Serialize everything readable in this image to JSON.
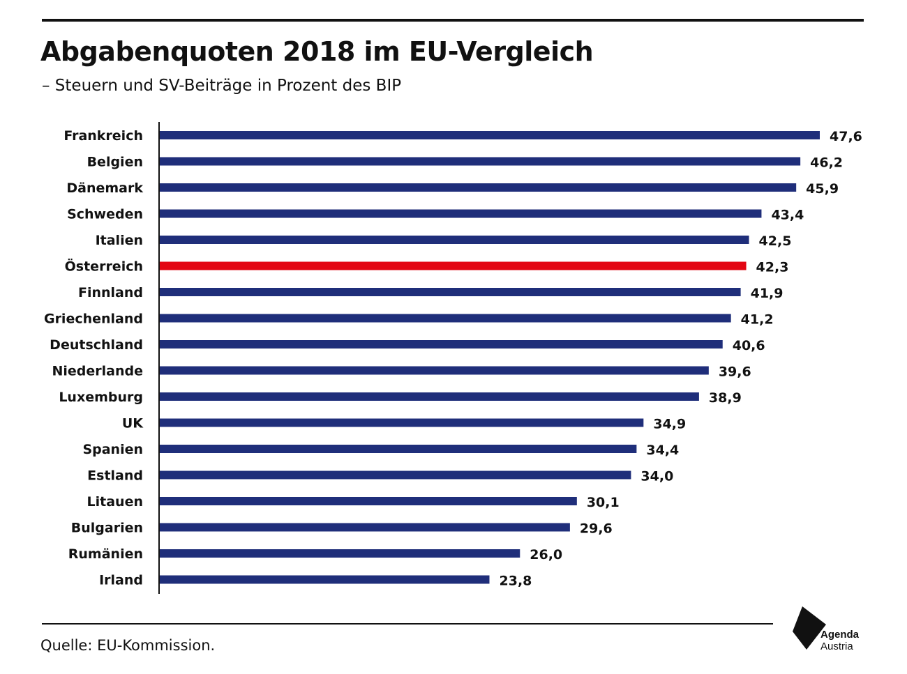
{
  "header": {
    "title": "Abgabenquoten 2018 im EU-Vergleich",
    "subtitle": "– Steuern und SV-Beiträge in Prozent des BIP"
  },
  "footer": {
    "source": "Quelle: EU-Kommission.",
    "logo_line1": "Agenda",
    "logo_line2": "Austria"
  },
  "colors": {
    "bar": "#1f2e7a",
    "highlight": "#e30613",
    "text": "#111111"
  },
  "chart_data": {
    "type": "bar",
    "orientation": "horizontal",
    "title": "Abgabenquoten 2018 im EU-Vergleich",
    "subtitle": "– Steuern und SV-Beiträge in Prozent des BIP",
    "categories": [
      "Frankreich",
      "Belgien",
      "Dänemark",
      "Schweden",
      "Italien",
      "Österreich",
      "Finnland",
      "Griechenland",
      "Deutschland",
      "Niederlande",
      "Luxemburg",
      "UK",
      "Spanien",
      "Estland",
      "Litauen",
      "Bulgarien",
      "Rumänien",
      "Irland"
    ],
    "values": [
      47.6,
      46.2,
      45.9,
      43.4,
      42.5,
      42.3,
      41.9,
      41.2,
      40.6,
      39.6,
      38.9,
      34.9,
      34.4,
      34.0,
      30.1,
      29.6,
      26.0,
      23.8
    ],
    "labels": [
      "47,6",
      "46,2",
      "45,9",
      "43,4",
      "42,5",
      "42,3",
      "41,9",
      "41,2",
      "40,6",
      "39,6",
      "38,9",
      "34,9",
      "34,4",
      "34,0",
      "30,1",
      "29,6",
      "26,0",
      "23,8"
    ],
    "highlight": "Österreich",
    "xlim": [
      0,
      47.6
    ],
    "grid": false,
    "legend": "none"
  }
}
